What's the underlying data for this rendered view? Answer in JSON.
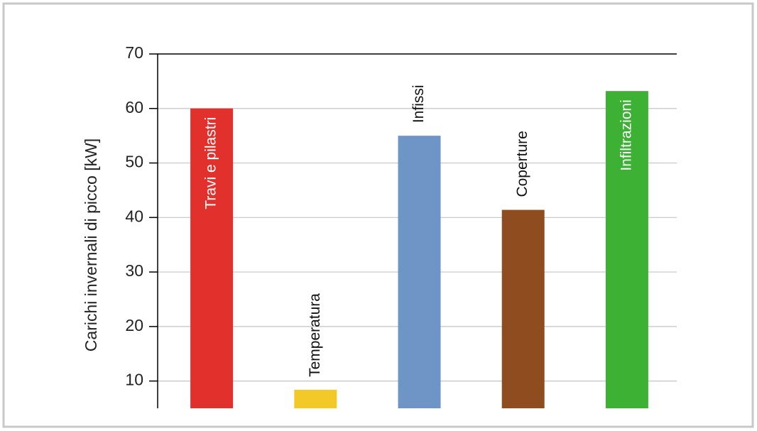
{
  "chart_data": {
    "type": "bar",
    "y_label": "Carichi invernali di picco [kW]",
    "categories": [
      "Travi e pilastri",
      "Temperatura",
      "Infissi",
      "Coperture",
      "Infiltrazioni"
    ],
    "values": [
      60,
      8.4,
      55,
      41.4,
      63.2
    ],
    "colors": [
      "#e2302d",
      "#f2c927",
      "#6f95c7",
      "#8f4c1f",
      "#3cb134"
    ],
    "label_inside": [
      true,
      false,
      false,
      false,
      true
    ],
    "ylim": [
      5,
      70
    ],
    "yticks": [
      10,
      20,
      30,
      40,
      50,
      60,
      70
    ],
    "grid": true
  }
}
